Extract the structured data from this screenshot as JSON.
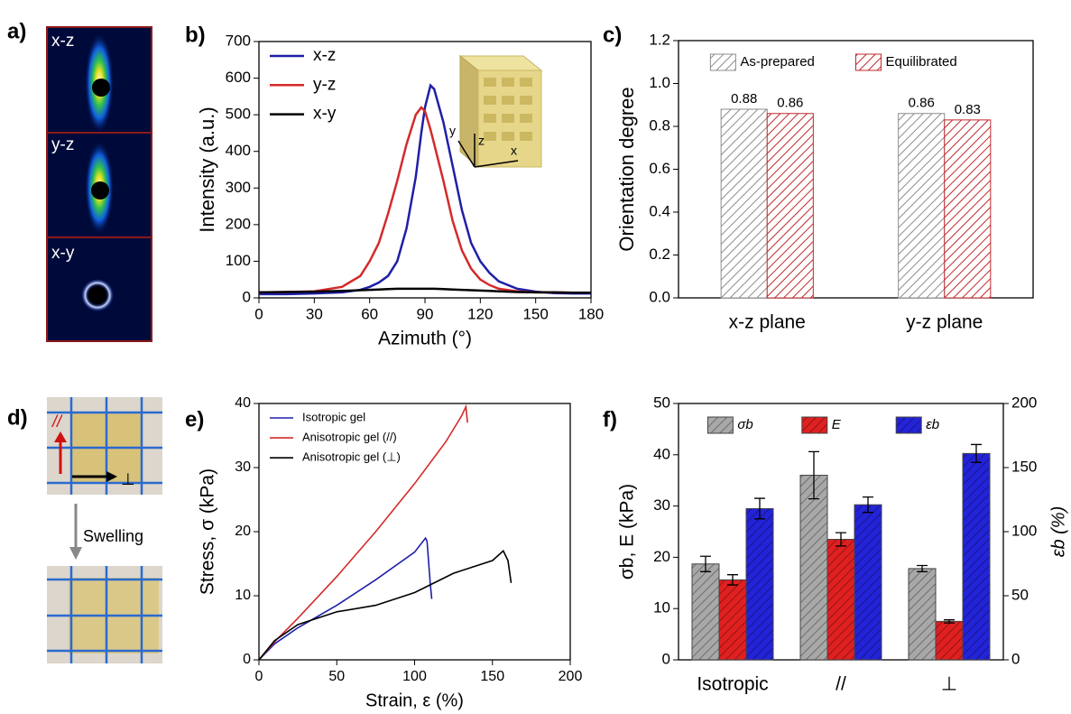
{
  "panels": {
    "a": {
      "label": "a)",
      "views": [
        "x-z",
        "y-z",
        "x-y"
      ]
    },
    "d": {
      "label": "d)",
      "arrow_labels": [
        "//",
        "⊥"
      ],
      "process": "Swelling"
    }
  },
  "chart_data": [
    {
      "panel": "b)",
      "type": "line",
      "xlabel": "Azimuth (°)",
      "ylabel": "Intensity (a.u.)",
      "x": [
        0,
        15,
        30,
        45,
        55,
        60,
        65,
        70,
        75,
        80,
        85,
        88,
        90,
        93,
        95,
        100,
        105,
        110,
        115,
        120,
        125,
        130,
        140,
        150,
        160,
        170,
        180
      ],
      "series": [
        {
          "name": "x-z",
          "color": "#1f1fa8",
          "values": [
            10,
            10,
            12,
            15,
            22,
            30,
            42,
            60,
            100,
            190,
            330,
            450,
            520,
            580,
            570,
            480,
            360,
            240,
            150,
            100,
            68,
            45,
            25,
            17,
            13,
            12,
            12
          ]
        },
        {
          "name": "y-z",
          "color": "#d42a2a",
          "values": [
            15,
            16,
            18,
            30,
            60,
            100,
            150,
            230,
            320,
            420,
            500,
            520,
            510,
            460,
            420,
            320,
            210,
            130,
            80,
            50,
            35,
            25,
            18,
            15,
            15,
            14,
            14
          ]
        },
        {
          "name": "x-y",
          "color": "#000000",
          "values": [
            15,
            16,
            17,
            19,
            21,
            22,
            23,
            24,
            25,
            25,
            25,
            25,
            25,
            25,
            25,
            24,
            23,
            22,
            21,
            20,
            19,
            18,
            16,
            15,
            15,
            14,
            14
          ]
        }
      ],
      "xlim": [
        0,
        180
      ],
      "xticks": [
        0,
        30,
        60,
        90,
        120,
        150,
        180
      ],
      "ylim": [
        0,
        700
      ],
      "yticks": [
        0,
        100,
        200,
        300,
        400,
        500,
        600,
        700
      ],
      "legend": "upper left",
      "inset_labels": [
        "x",
        "y",
        "z"
      ]
    },
    {
      "panel": "c)",
      "type": "bar",
      "ylabel": "Orientation degree",
      "categories": [
        "x-z plane",
        "y-z plane"
      ],
      "series": [
        {
          "name": "As-prepared",
          "color": "#8c8c8c",
          "values": [
            0.88,
            0.86
          ]
        },
        {
          "name": "Equilibrated",
          "color": "#c0282e",
          "values": [
            0.86,
            0.83
          ]
        }
      ],
      "ylim": [
        0,
        1.2
      ],
      "yticks": [
        {
          "value": 0,
          "label": "0.0"
        },
        0.2,
        0.4,
        0.6,
        0.8,
        {
          "value": 1,
          "label": "1.0"
        },
        1.2
      ],
      "data_labels": true,
      "bar_background": "#ffffff",
      "legend": "upper center"
    },
    {
      "panel": "e)",
      "type": "line",
      "xlabel": "Strain, ε (%)",
      "ylabel": "Stress, σ (kPa)",
      "series": [
        {
          "name": "Isotropic gel",
          "color": "#1f1fa8",
          "x": [
            0,
            10,
            25,
            50,
            75,
            100,
            107,
            108,
            110,
            111
          ],
          "values": [
            0,
            2.5,
            5,
            8.5,
            12.5,
            16.8,
            19,
            18.5,
            12,
            9.5
          ]
        },
        {
          "name": "Anisotropic gel (//)",
          "color": "#d42a2a",
          "x": [
            0,
            10,
            25,
            50,
            75,
            100,
            120,
            130,
            133,
            134
          ],
          "values": [
            0,
            2.8,
            6.5,
            13,
            20,
            27.5,
            34,
            38,
            39.5,
            37
          ]
        },
        {
          "name": "Anisotropic gel (⊥)",
          "color": "#000000",
          "x": [
            0,
            10,
            25,
            50,
            75,
            100,
            125,
            150,
            157,
            160,
            162
          ],
          "values": [
            0,
            3,
            5.5,
            7.5,
            8.5,
            10.5,
            13.5,
            15.5,
            17,
            15.5,
            12
          ]
        }
      ],
      "xlim": [
        0,
        200
      ],
      "xticks": [
        0,
        50,
        100,
        150,
        200
      ],
      "ylim": [
        0,
        40
      ],
      "yticks": [
        0,
        10,
        20,
        30,
        40
      ],
      "legend": "upper left"
    },
    {
      "panel": "f)",
      "type": "bar",
      "ylabel": "σb, E (kPa)",
      "y2label": "εb (%)",
      "categories": [
        "Isotropic",
        "//",
        "⊥"
      ],
      "series": [
        {
          "name": "σb",
          "color": "#a8a8a8",
          "values": [
            18.7,
            36,
            17.8
          ],
          "errors": [
            1.5,
            4.6,
            0.6
          ]
        },
        {
          "name": "E",
          "color": "#e02020",
          "values": [
            15.6,
            23.5,
            7.5
          ],
          "errors": [
            1,
            1.3,
            0.3
          ]
        },
        {
          "name": "εb",
          "color": "#2323d8",
          "axis": "y2",
          "values": [
            118,
            121,
            161
          ],
          "errors": [
            8,
            6,
            7
          ]
        }
      ],
      "ylim": [
        0,
        50
      ],
      "yticks": [
        0,
        10,
        20,
        30,
        40,
        50
      ],
      "y2lim": [
        0,
        200
      ],
      "y2ticks": [
        0,
        50,
        100,
        150,
        200
      ],
      "legend": "upper center"
    }
  ]
}
